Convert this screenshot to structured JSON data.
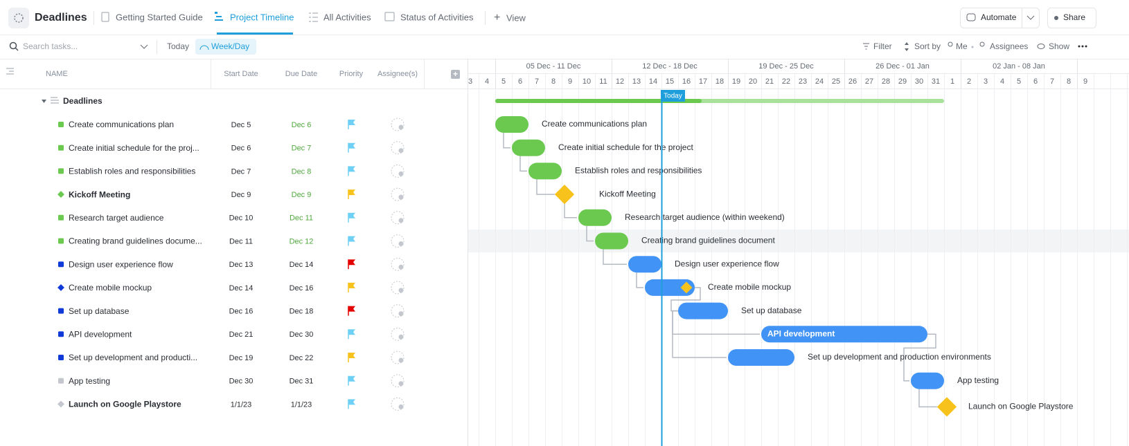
{
  "header": {
    "title": "Deadlines",
    "tabs": [
      "Getting Started Guide",
      "Project Timeline",
      "All Activities",
      "Status of Activities"
    ],
    "add_view": "View",
    "automate": "Automate",
    "share": "Share"
  },
  "toolbar": {
    "search_placeholder": "Search tasks...",
    "today": "Today",
    "week_day": "Week/Day",
    "filter": "Filter",
    "sort_by": "Sort by",
    "me": "Me",
    "assignees": "Assignees",
    "show": "Show"
  },
  "table": {
    "columns": [
      "NAME",
      "Start Date",
      "Due Date",
      "Priority",
      "Assignee(s)"
    ],
    "group": "Deadlines",
    "rows": [
      {
        "name": "Create communications plan",
        "start": "Dec 5",
        "due": "Dec 6"
      },
      {
        "name": "Create initial schedule for the proj...",
        "start": "Dec 6",
        "due": "Dec 7"
      },
      {
        "name": "Establish roles and responsibilities",
        "start": "Dec 7",
        "due": "Dec 8"
      },
      {
        "name": "Kickoff Meeting",
        "start": "Dec 9",
        "due": "Dec 9"
      },
      {
        "name": "Research target audience",
        "start": "Dec 10",
        "due": "Dec 11"
      },
      {
        "name": "Creating brand guidelines docume...",
        "start": "Dec 11",
        "due": "Dec 12"
      },
      {
        "name": "Design user experience flow",
        "start": "Dec 13",
        "due": "Dec 14"
      },
      {
        "name": "Create mobile mockup",
        "start": "Dec 14",
        "due": "Dec 16"
      },
      {
        "name": "Set up database",
        "start": "Dec 16",
        "due": "Dec 18"
      },
      {
        "name": "API development",
        "start": "Dec 21",
        "due": "Dec 30"
      },
      {
        "name": "Set up development and producti...",
        "start": "Dec 19",
        "due": "Dec 22"
      },
      {
        "name": "App testing",
        "start": "Dec 30",
        "due": "Dec 31"
      },
      {
        "name": "Launch on Google Playstore",
        "start": "1/1/23",
        "due": "1/1/23"
      }
    ]
  },
  "timeline": {
    "weeks": [
      "05 Dec - 11 Dec",
      "12 Dec - 18 Dec",
      "19 Dec - 25 Dec",
      "26 Dec - 01 Jan",
      "02 Jan - 08 Jan"
    ],
    "days": [
      "3",
      "4",
      "5",
      "6",
      "7",
      "8",
      "9",
      "10",
      "11",
      "12",
      "13",
      "14",
      "15",
      "16",
      "17",
      "18",
      "19",
      "20",
      "21",
      "22",
      "23",
      "24",
      "25",
      "26",
      "27",
      "28",
      "29",
      "30",
      "31",
      "1",
      "2",
      "3",
      "4",
      "5",
      "6",
      "7",
      "8",
      "9"
    ],
    "today_label": "Today",
    "bar_labels": [
      "Create communications plan",
      "Create initial schedule for the project",
      "Establish roles and responsibilities",
      "Kickoff Meeting",
      "Research target audience (within weekend)",
      "Creating brand guidelines document",
      "Design user experience flow",
      "Create mobile mockup",
      "Set up database",
      "API development",
      "Set up development and production environments",
      "App testing",
      "Launch on Google Playstore"
    ]
  }
}
